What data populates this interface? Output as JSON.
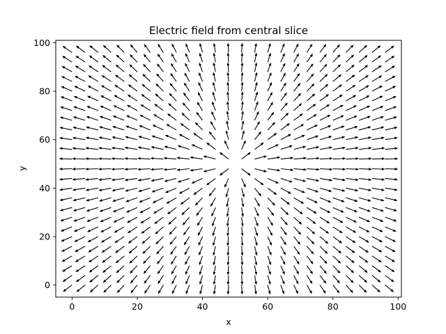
{
  "chart_data": {
    "type": "quiver",
    "title": "Electric field from central slice",
    "xlabel": "x",
    "ylabel": "y",
    "xlim": [
      -5,
      101
    ],
    "ylim": [
      -5,
      101
    ],
    "x_ticks": [
      0,
      20,
      40,
      60,
      80,
      100
    ],
    "y_ticks": [
      0,
      20,
      40,
      60,
      80,
      100
    ],
    "x_tick_labels": [
      "0",
      "20",
      "40",
      "60",
      "80",
      "100"
    ],
    "y_tick_labels": [
      "0",
      "20",
      "40",
      "60",
      "80",
      "100"
    ],
    "grid": false,
    "arrow_color": "#000000",
    "field": {
      "source_center": [
        50,
        50
      ],
      "x_start": 0,
      "x_step": 4,
      "x_count": 25,
      "y_start": 0,
      "y_step": 4,
      "y_count": 25,
      "unit_arrow_length": 4,
      "direction": "outward-normalized"
    }
  }
}
